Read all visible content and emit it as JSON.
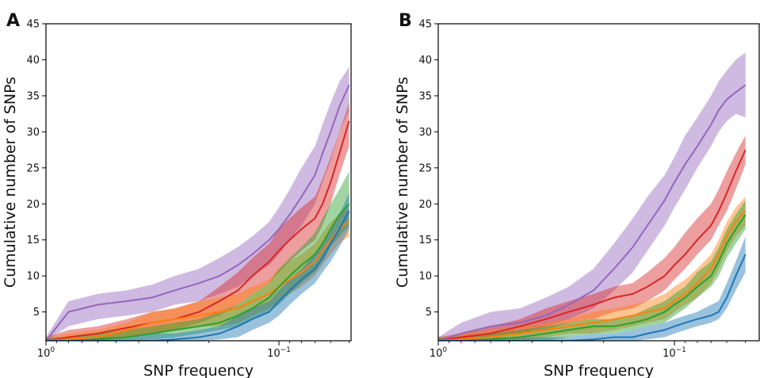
{
  "chart_data": [
    {
      "panel": "A",
      "type": "line",
      "xlabel": "SNP frequency",
      "ylabel": "Cumulative number of SNPs",
      "x_scale": "log",
      "x_axis_reversed": true,
      "xlim": [
        1.0,
        0.05
      ],
      "ylim": [
        1,
        45
      ],
      "y_ticks": [
        5,
        10,
        15,
        20,
        25,
        30,
        35,
        40,
        45
      ],
      "x_ticks": [
        {
          "base": "10",
          "exp": "0",
          "value": 1
        },
        {
          "base": "10",
          "exp": "−1",
          "value": 0.1
        }
      ],
      "grid": false,
      "legend": "none",
      "x": [
        1.0,
        0.8,
        0.6,
        0.45,
        0.35,
        0.28,
        0.22,
        0.18,
        0.15,
        0.13,
        0.11,
        0.1,
        0.09,
        0.08,
        0.07,
        0.065,
        0.06,
        0.055,
        0.05
      ],
      "series": [
        {
          "color": "#9467bd",
          "values": [
            1,
            5,
            6,
            6.5,
            7,
            8,
            9,
            10,
            11.5,
            13,
            15,
            16.5,
            18.5,
            21,
            24,
            27,
            30,
            33.5,
            36.5
          ],
          "lower": [
            1,
            3,
            4,
            4.5,
            5,
            6,
            6.5,
            7.5,
            8.5,
            10,
            11.5,
            13,
            15,
            17,
            20,
            23,
            26,
            30,
            33
          ],
          "upper": [
            1.5,
            6.5,
            7.5,
            8,
            8.8,
            10,
            11,
            12.5,
            14,
            15.5,
            17.5,
            19.5,
            22,
            25,
            28,
            31,
            34,
            37,
            39
          ]
        },
        {
          "color": "#d62728",
          "values": [
            1,
            1.5,
            2,
            2.8,
            3.5,
            4,
            5,
            6.5,
            8,
            10,
            12,
            13.5,
            15,
            16.5,
            18,
            20,
            23,
            27,
            31.5
          ],
          "lower": [
            1,
            1,
            1.2,
            1.5,
            2,
            2.5,
            3.5,
            4.5,
            6,
            7.5,
            9,
            10.5,
            12,
            13.5,
            15,
            17,
            20,
            24,
            28
          ],
          "upper": [
            1.5,
            2.5,
            3,
            4,
            5,
            5.5,
            6.5,
            8.5,
            10.5,
            12.5,
            14.5,
            16.5,
            18,
            19.5,
            21,
            23.5,
            26.5,
            30,
            34
          ]
        },
        {
          "color": "#ff7f0e",
          "values": [
            1,
            1.2,
            1.5,
            2.5,
            3.5,
            4,
            4.5,
            5,
            5.5,
            6.5,
            7.5,
            8.5,
            9.5,
            10.5,
            12,
            13.5,
            15,
            16.5,
            17.5
          ],
          "lower": [
            1,
            1,
            1,
            1.5,
            2,
            2.5,
            3,
            3,
            3.5,
            4.5,
            5.5,
            6.5,
            7.5,
            8.5,
            10,
            11.5,
            13,
            14.5,
            15.5
          ],
          "upper": [
            1.5,
            2,
            2.5,
            3.5,
            5,
            5.5,
            6.5,
            7,
            7.5,
            8.5,
            9.5,
            11,
            12,
            13,
            14.5,
            16,
            17.5,
            18.5,
            19.5
          ]
        },
        {
          "color": "#2ca02c",
          "values": [
            1,
            1,
            1.2,
            1.5,
            2,
            2.5,
            3,
            3.5,
            4.5,
            5.5,
            7,
            8.5,
            10,
            11.5,
            13,
            14.5,
            16.5,
            18.5,
            20
          ],
          "lower": [
            1,
            1,
            1,
            1,
            1.2,
            1.5,
            2,
            2.5,
            3,
            4,
            5,
            6,
            7.5,
            9,
            10.5,
            12,
            14,
            15.5,
            17
          ],
          "upper": [
            1.5,
            1.5,
            2,
            2.5,
            3,
            3.5,
            4,
            5,
            6,
            7.5,
            9,
            11,
            12.5,
            14,
            16,
            18,
            20,
            22,
            24.5
          ]
        },
        {
          "color": "#1f77b4",
          "values": [
            1,
            1,
            1,
            1,
            1,
            1.2,
            1.5,
            2,
            3,
            4,
            5,
            6.5,
            8,
            9.5,
            11,
            12.5,
            14.5,
            16.5,
            19
          ],
          "lower": [
            1,
            1,
            1,
            1,
            1,
            1,
            1,
            1.2,
            1.5,
            2.5,
            3.5,
            4.5,
            6,
            7.5,
            9,
            10.5,
            12,
            14,
            16.5
          ],
          "upper": [
            1.2,
            1.2,
            1.5,
            1.5,
            2,
            2,
            2.5,
            3,
            4.5,
            5.5,
            6.5,
            8,
            9.5,
            11,
            13,
            14.5,
            16.5,
            18.5,
            21.5
          ]
        }
      ]
    },
    {
      "panel": "B",
      "type": "line",
      "xlabel": "SNP frequency",
      "ylabel": "Cumulative number of SNPs",
      "x_scale": "log",
      "x_axis_reversed": true,
      "xlim": [
        1.0,
        0.05
      ],
      "ylim": [
        1,
        45
      ],
      "y_ticks": [
        5,
        10,
        15,
        20,
        25,
        30,
        35,
        40,
        45
      ],
      "x_ticks": [
        {
          "base": "10",
          "exp": "0",
          "value": 1
        },
        {
          "base": "10",
          "exp": "−1",
          "value": 0.1
        }
      ],
      "grid": false,
      "legend": "none",
      "x": [
        1.0,
        0.8,
        0.6,
        0.45,
        0.35,
        0.28,
        0.22,
        0.18,
        0.15,
        0.13,
        0.11,
        0.1,
        0.09,
        0.08,
        0.07,
        0.065,
        0.06,
        0.055,
        0.05
      ],
      "series": [
        {
          "color": "#9467bd",
          "values": [
            1,
            2,
            3,
            3.5,
            4.5,
            6,
            8,
            11,
            14,
            17,
            20.5,
            23,
            25.5,
            28,
            31,
            33,
            34.5,
            35.5,
            36.5
          ],
          "lower": [
            1,
            1,
            1.5,
            2,
            3,
            4,
            5.5,
            8,
            10.5,
            13.5,
            17,
            19.5,
            22,
            25,
            28,
            30,
            31.5,
            32.5,
            32
          ],
          "upper": [
            1.5,
            3.5,
            5,
            5.5,
            7,
            8.5,
            11,
            14.5,
            18,
            21,
            24,
            26.5,
            29.5,
            32,
            35,
            37,
            38.5,
            40,
            41
          ]
        },
        {
          "color": "#d62728",
          "values": [
            1,
            1.5,
            2,
            3,
            4,
            5,
            6,
            7,
            7.5,
            8.5,
            10,
            11.5,
            13,
            15,
            17,
            19,
            21.5,
            24.5,
            27.5
          ],
          "lower": [
            1,
            1,
            1.5,
            2,
            2.5,
            3.5,
            4,
            5,
            5.5,
            6.5,
            8,
            9.5,
            11,
            13,
            15,
            17,
            19,
            22,
            25.5
          ],
          "upper": [
            1.5,
            2,
            3,
            4,
            5.5,
            6.5,
            7.5,
            8.5,
            9,
            10.5,
            12.5,
            14,
            16,
            18,
            20,
            22,
            24.5,
            27,
            29.5
          ]
        },
        {
          "color": "#ff7f0e",
          "values": [
            1,
            1.2,
            1.5,
            2,
            2.5,
            3,
            3.5,
            4,
            4.5,
            5,
            5.5,
            6.5,
            7.5,
            9,
            11,
            13,
            15.5,
            17.5,
            19
          ],
          "lower": [
            1,
            1,
            1,
            1,
            1.5,
            2,
            2,
            2.5,
            3,
            3.5,
            4,
            5,
            6,
            7,
            9,
            11,
            13.5,
            15.5,
            17
          ],
          "upper": [
            1.5,
            2,
            2.5,
            3,
            3.5,
            4,
            5,
            5.5,
            6,
            6.5,
            7.5,
            8.5,
            9.5,
            11,
            13,
            15,
            17.5,
            19.5,
            21
          ]
        },
        {
          "color": "#2ca02c",
          "values": [
            1,
            1,
            1.2,
            1.5,
            2,
            2.5,
            3,
            3,
            3.5,
            4,
            5,
            6,
            7,
            8.5,
            10,
            12,
            14.5,
            16.5,
            18.5
          ],
          "lower": [
            1,
            1,
            1,
            1,
            1,
            1.5,
            2,
            2,
            2.5,
            3,
            3.5,
            4.5,
            5.5,
            7,
            8.5,
            10,
            12.5,
            14.5,
            16.5
          ],
          "upper": [
            1.5,
            1.5,
            2,
            2.5,
            3,
            3.5,
            4,
            4,
            4.5,
            5.5,
            6.5,
            7.5,
            8.5,
            10.5,
            12,
            14,
            16.5,
            18.5,
            20.5
          ]
        },
        {
          "color": "#1f77b4",
          "values": [
            1,
            1,
            1,
            1,
            1,
            1,
            1.2,
            1.5,
            1.5,
            2,
            2.5,
            3,
            3.5,
            4,
            4.5,
            5,
            7,
            10,
            13
          ],
          "lower": [
            1,
            1,
            1,
            1,
            1,
            1,
            1,
            1,
            1,
            1.2,
            1.5,
            2,
            2.5,
            3,
            3.5,
            4,
            5.5,
            8,
            10.5
          ],
          "upper": [
            1.2,
            1.2,
            1.5,
            1.5,
            1.5,
            1.5,
            2,
            2,
            2.5,
            3,
            3.5,
            4,
            4.5,
            5,
            6,
            6.5,
            9,
            12,
            15.5
          ]
        }
      ]
    }
  ]
}
